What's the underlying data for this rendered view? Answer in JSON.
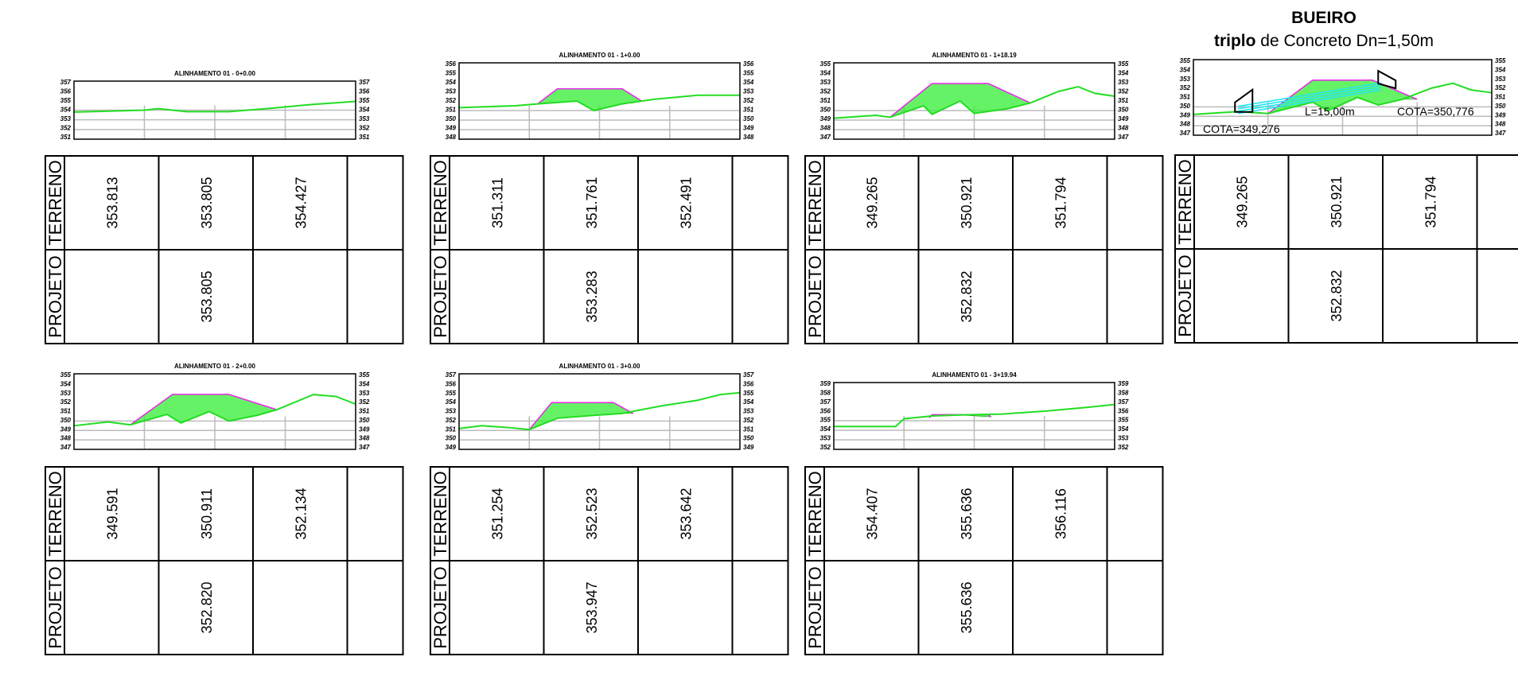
{
  "header": {
    "title": "BUEIRO",
    "subtitle_bold": "triplo",
    "subtitle_rest": " de Concreto Dn=1,50m"
  },
  "row_labels": {
    "terreno": "TERRENO",
    "projeto": "PROJETO"
  },
  "colors": {
    "terrain": "#22dd22",
    "fill": "#33ee33",
    "slope": "#ee22ee",
    "culvert": "#22e5f0",
    "grid": "#bbbbbb"
  },
  "sections": [
    {
      "title": "ALINHAMENTO 01 - 0+0.00",
      "ticks": [
        "357",
        "356",
        "355",
        "354",
        "353",
        "352",
        "351"
      ],
      "y_range": [
        351,
        357
      ],
      "ground": [
        [
          0,
          353.8
        ],
        [
          25,
          354.0
        ],
        [
          30,
          354.15
        ],
        [
          40,
          353.85
        ],
        [
          55,
          353.85
        ],
        [
          70,
          354.2
        ],
        [
          85,
          354.6
        ],
        [
          100,
          354.9
        ]
      ],
      "road": null,
      "terreno": [
        "353.813",
        "353.805",
        "354.427"
      ],
      "projeto": [
        "",
        "353.805",
        ""
      ]
    },
    {
      "title": "ALINHAMENTO 01 - 1+0.00",
      "ticks": [
        "356",
        "355",
        "354",
        "353",
        "352",
        "351",
        "350",
        "349",
        "348"
      ],
      "y_range": [
        348,
        356
      ],
      "ground": [
        [
          0,
          351.3
        ],
        [
          20,
          351.5
        ],
        [
          28,
          351.7
        ],
        [
          42,
          352.0
        ],
        [
          48,
          351.0
        ],
        [
          58,
          351.7
        ],
        [
          70,
          352.2
        ],
        [
          85,
          352.6
        ],
        [
          100,
          352.6
        ]
      ],
      "road": [
        [
          28,
          351.7
        ],
        [
          35,
          353.28
        ],
        [
          58,
          353.28
        ],
        [
          65,
          352.0
        ]
      ],
      "terreno": [
        "351.311",
        "351.761",
        "352.491"
      ],
      "projeto": [
        "",
        "353.283",
        ""
      ]
    },
    {
      "title": "ALINHAMENTO 01 - 1+18.19",
      "ticks": [
        "355",
        "354",
        "353",
        "352",
        "351",
        "350",
        "349",
        "348",
        "347"
      ],
      "y_range": [
        347,
        355
      ],
      "ground": [
        [
          0,
          349.2
        ],
        [
          15,
          349.5
        ],
        [
          20,
          349.3
        ],
        [
          32,
          350.5
        ],
        [
          35,
          349.6
        ],
        [
          45,
          351.0
        ],
        [
          50,
          349.7
        ],
        [
          62,
          350.2
        ],
        [
          70,
          350.8
        ],
        [
          80,
          352.0
        ],
        [
          87,
          352.5
        ],
        [
          93,
          351.8
        ],
        [
          100,
          351.5
        ]
      ],
      "road": [
        [
          20,
          349.3
        ],
        [
          35,
          352.83
        ],
        [
          55,
          352.83
        ],
        [
          70,
          350.8
        ]
      ],
      "terreno": [
        "349.265",
        "350.921",
        "351.794"
      ],
      "projeto": [
        "",
        "352.832",
        ""
      ]
    },
    {
      "title": "",
      "ticks": [
        "355",
        "354",
        "353",
        "352",
        "351",
        "350",
        "349",
        "348",
        "347"
      ],
      "y_range": [
        347,
        355
      ],
      "ground": [
        [
          0,
          349.2
        ],
        [
          15,
          349.5
        ],
        [
          25,
          349.3
        ],
        [
          40,
          350.5
        ],
        [
          45,
          349.6
        ],
        [
          55,
          351.0
        ],
        [
          62,
          350.2
        ],
        [
          70,
          350.8
        ],
        [
          80,
          352.0
        ],
        [
          87,
          352.5
        ],
        [
          93,
          351.8
        ],
        [
          100,
          351.5
        ]
      ],
      "road": [
        [
          25,
          349.3
        ],
        [
          40,
          352.83
        ],
        [
          60,
          352.83
        ],
        [
          75,
          350.8
        ]
      ],
      "terreno": [
        "349.265",
        "350.921",
        "351.794"
      ],
      "projeto": [
        "",
        "352.832",
        ""
      ]
    },
    {
      "title": "ALINHAMENTO 01 - 2+0.00",
      "ticks": [
        "355",
        "354",
        "353",
        "352",
        "351",
        "350",
        "349",
        "348",
        "347"
      ],
      "y_range": [
        347,
        355
      ],
      "ground": [
        [
          0,
          349.5
        ],
        [
          12,
          349.9
        ],
        [
          20,
          349.6
        ],
        [
          33,
          350.7
        ],
        [
          38,
          349.8
        ],
        [
          48,
          351.0
        ],
        [
          55,
          350.0
        ],
        [
          65,
          350.6
        ],
        [
          72,
          351.2
        ],
        [
          85,
          352.8
        ],
        [
          93,
          352.6
        ],
        [
          100,
          351.8
        ]
      ],
      "road": [
        [
          20,
          349.6
        ],
        [
          35,
          352.82
        ],
        [
          55,
          352.82
        ],
        [
          72,
          351.2
        ]
      ],
      "terreno": [
        "349.591",
        "350.911",
        "352.134"
      ],
      "projeto": [
        "",
        "352.820",
        ""
      ]
    },
    {
      "title": "ALINHAMENTO 01 - 3+0.00",
      "ticks": [
        "357",
        "356",
        "355",
        "354",
        "353",
        "352",
        "351",
        "350",
        "349"
      ],
      "y_range": [
        349,
        357
      ],
      "ground": [
        [
          0,
          351.2
        ],
        [
          8,
          351.5
        ],
        [
          18,
          351.3
        ],
        [
          25,
          351.1
        ],
        [
          35,
          352.3
        ],
        [
          48,
          352.6
        ],
        [
          58,
          352.8
        ],
        [
          72,
          353.6
        ],
        [
          85,
          354.2
        ],
        [
          93,
          354.8
        ],
        [
          100,
          355.0
        ]
      ],
      "road": [
        [
          25,
          351.1
        ],
        [
          33,
          353.95
        ],
        [
          55,
          353.95
        ],
        [
          62,
          352.8
        ]
      ],
      "terreno": [
        "351.254",
        "352.523",
        "353.642"
      ],
      "projeto": [
        "",
        "353.947",
        ""
      ]
    },
    {
      "title": "ALINHAMENTO 01 - 3+19.94",
      "ticks": [
        "359",
        "358",
        "357",
        "356",
        "355",
        "354",
        "353",
        "352"
      ],
      "y_range": [
        352,
        359
      ],
      "ground": [
        [
          0,
          354.4
        ],
        [
          22,
          354.4
        ],
        [
          25,
          355.2
        ],
        [
          35,
          355.5
        ],
        [
          45,
          355.6
        ],
        [
          60,
          355.7
        ],
        [
          75,
          356.0
        ],
        [
          90,
          356.4
        ],
        [
          100,
          356.7
        ]
      ],
      "road": [
        [
          34,
          355.3
        ],
        [
          35,
          355.64
        ],
        [
          55,
          355.64
        ],
        [
          56,
          355.4
        ]
      ],
      "terreno": [
        "354.407",
        "355.636",
        "356.116"
      ],
      "projeto": [
        "",
        "355.636",
        ""
      ]
    }
  ],
  "culvert": {
    "length_label": "L=15,00m",
    "cota_left": "COTA=349,276",
    "cota_right": "COTA=350,776"
  }
}
